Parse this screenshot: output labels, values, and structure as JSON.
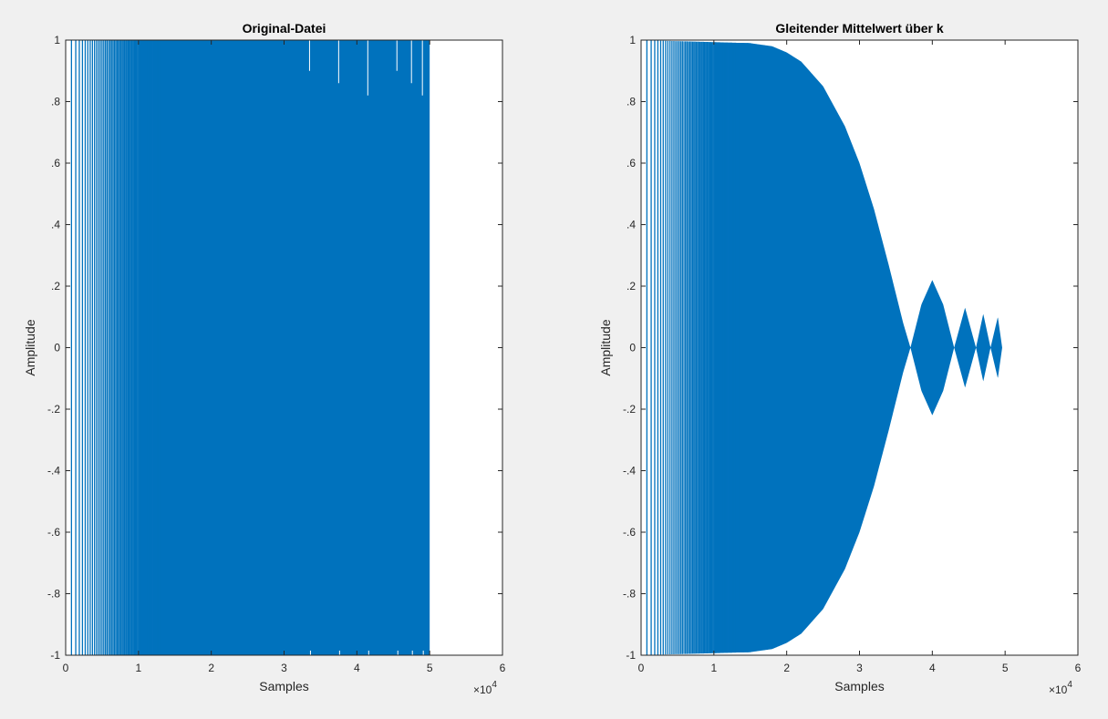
{
  "figure": {
    "background": "#f0f0f0",
    "axes_background": "#ffffff",
    "line_color": "#0072bd"
  },
  "chart_data": [
    {
      "type": "line",
      "title": "Original-Datei",
      "xlabel": "Samples",
      "ylabel": "Amplitude",
      "xlim": [
        0,
        6
      ],
      "ylim": [
        -1,
        1
      ],
      "x_exponent_label": "×10",
      "x_exponent": "4",
      "x_ticks": [
        0,
        1,
        2,
        3,
        4,
        5,
        6
      ],
      "y_ticks": [
        -1,
        -0.8,
        -0.6,
        -0.4,
        -0.2,
        0,
        0.2,
        0.4,
        0.6,
        0.8,
        1
      ],
      "grid": false,
      "series": [
        {
          "color": "#0072bd",
          "description_signal": "chirp",
          "x": [
            0,
            0.5,
            1,
            1.5,
            2,
            2.5,
            3,
            3.5,
            4,
            4.5,
            5
          ],
          "envelope_upper": [
            1,
            1,
            1,
            1,
            1,
            1,
            1,
            1,
            1,
            1,
            1
          ],
          "envelope_lower": [
            -1,
            -1,
            -1,
            -1,
            -1,
            -1,
            -1,
            -1,
            -1,
            -1,
            -1
          ]
        }
      ]
    },
    {
      "type": "line",
      "title": "Gleitender Mittelwert über k",
      "xlabel": "Samples",
      "ylabel": "Amplitude",
      "xlim": [
        0,
        6
      ],
      "ylim": [
        -1,
        1
      ],
      "x_exponent_label": "×10",
      "x_exponent": "4",
      "x_ticks": [
        0,
        1,
        2,
        3,
        4,
        5,
        6
      ],
      "y_ticks": [
        -1,
        -0.8,
        -0.6,
        -0.4,
        -0.2,
        0,
        0.2,
        0.4,
        0.6,
        0.8,
        1
      ],
      "grid": false,
      "series": [
        {
          "color": "#0072bd",
          "description_signal": "chirp",
          "x": [
            0,
            1.5,
            1.8,
            2.0,
            2.2,
            2.5,
            2.8,
            3.0,
            3.2,
            3.4,
            3.6,
            3.7,
            3.85,
            4.0,
            4.15,
            4.3,
            4.45,
            4.6,
            4.7,
            4.8,
            4.9,
            4.96
          ],
          "envelope_upper": [
            1,
            0.99,
            0.98,
            0.96,
            0.93,
            0.85,
            0.72,
            0.6,
            0.45,
            0.27,
            0.08,
            0,
            0.14,
            0.22,
            0.14,
            0,
            0.13,
            0,
            0.11,
            0,
            0.1,
            0
          ]
        }
      ]
    }
  ]
}
